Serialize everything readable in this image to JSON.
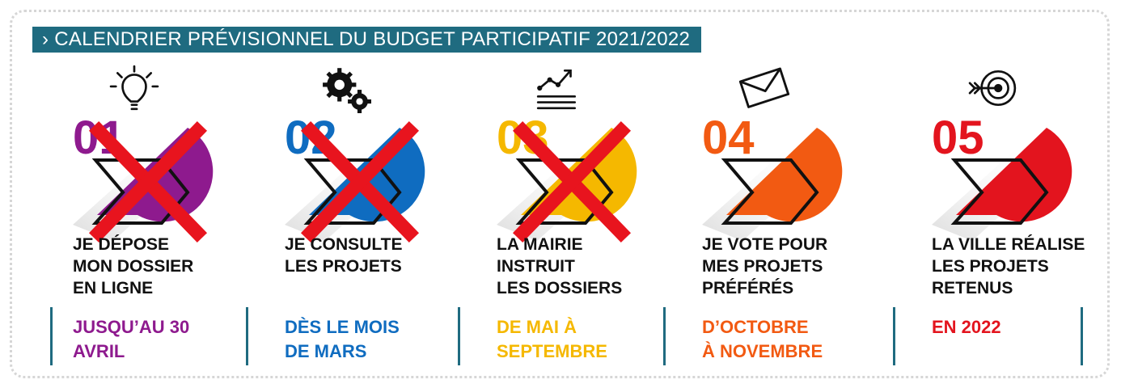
{
  "title": "› CALENDRIER PRÉVISIONNEL DU BUDGET PARTICIPATIF 2021/2022",
  "steps": [
    {
      "number": "01",
      "color": "#8e1a8e",
      "icon": "lightbulb-icon",
      "crossed": true,
      "desc": [
        "JE DÉPOSE",
        "MON DOSSIER",
        "EN LIGNE"
      ],
      "date": [
        "JUSQU’AU 30",
        "AVRIL"
      ]
    },
    {
      "number": "02",
      "color": "#0f6cc0",
      "icon": "gears-icon",
      "crossed": true,
      "desc": [
        "JE CONSULTE",
        "LES PROJETS"
      ],
      "date": [
        "DÈS LE MOIS",
        "DE MARS"
      ]
    },
    {
      "number": "03",
      "color": "#f5b800",
      "icon": "growth-chart-icon",
      "crossed": true,
      "desc": [
        "LA MAIRIE",
        "INSTRUIT",
        "LES DOSSIERS"
      ],
      "date": [
        "DE MAI À",
        "SEPTEMBRE"
      ]
    },
    {
      "number": "04",
      "color": "#f25a12",
      "icon": "envelope-icon",
      "crossed": false,
      "desc": [
        "JE VOTE POUR",
        "MES PROJETS",
        "PRÉFÉRÉS"
      ],
      "date": [
        "D’OCTOBRE",
        "À NOVEMBRE"
      ]
    },
    {
      "number": "05",
      "color": "#e3141e",
      "icon": "target-icon",
      "crossed": false,
      "desc": [
        "LA VILLE RÉALISE",
        "LES PROJETS",
        "RETENUS"
      ],
      "date": [
        "EN 2022"
      ]
    }
  ],
  "colors": {
    "title_bg": "#1f6b80",
    "cross": "#e8141e",
    "separator": "#1f6b80"
  }
}
